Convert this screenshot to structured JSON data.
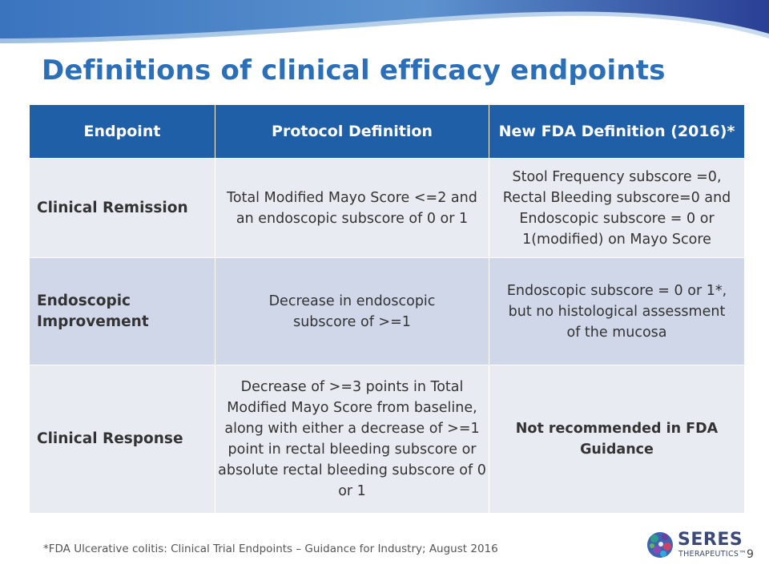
{
  "slide": {
    "title": "Definitions of clinical efficacy endpoints",
    "footnote": "*FDA Ulcerative colitis: Clinical Trial Endpoints – Guidance for Industry; August 2016",
    "page_number": "9"
  },
  "table": {
    "headers": [
      "Endpoint",
      "Protocol Definition",
      "New FDA Definition (2016)*"
    ],
    "rows": [
      {
        "endpoint": "Clinical Remission",
        "protocol": "Total Modified Mayo Score <=2 and an endoscopic subscore of 0 or 1",
        "fda": "Stool Frequency subscore =0, Rectal Bleeding subscore=0 and Endoscopic subscore = 0 or 1(modified) on Mayo Score"
      },
      {
        "endpoint": "Endoscopic Improvement",
        "protocol": "Decrease in endoscopic subscore of >=1",
        "fda": "Endoscopic subscore = 0 or 1*, but no histological assessment of the mucosa"
      },
      {
        "endpoint": "Clinical Response",
        "protocol": "Decrease of >=3 points in Total Modified Mayo Score from baseline, along with either a decrease of >=1 point in rectal bleeding subscore or absolute rectal bleeding subscore of 0 or 1",
        "fda": "Not recommended in FDA Guidance"
      }
    ]
  },
  "logo": {
    "name": "SERES",
    "subtitle": "THERAPEUTICS™"
  },
  "colors": {
    "title": "#2a6fb7",
    "header_bg": "#1f5fa8",
    "row_light": "#e9ebf3",
    "row_dark": "#d0d7e8"
  }
}
